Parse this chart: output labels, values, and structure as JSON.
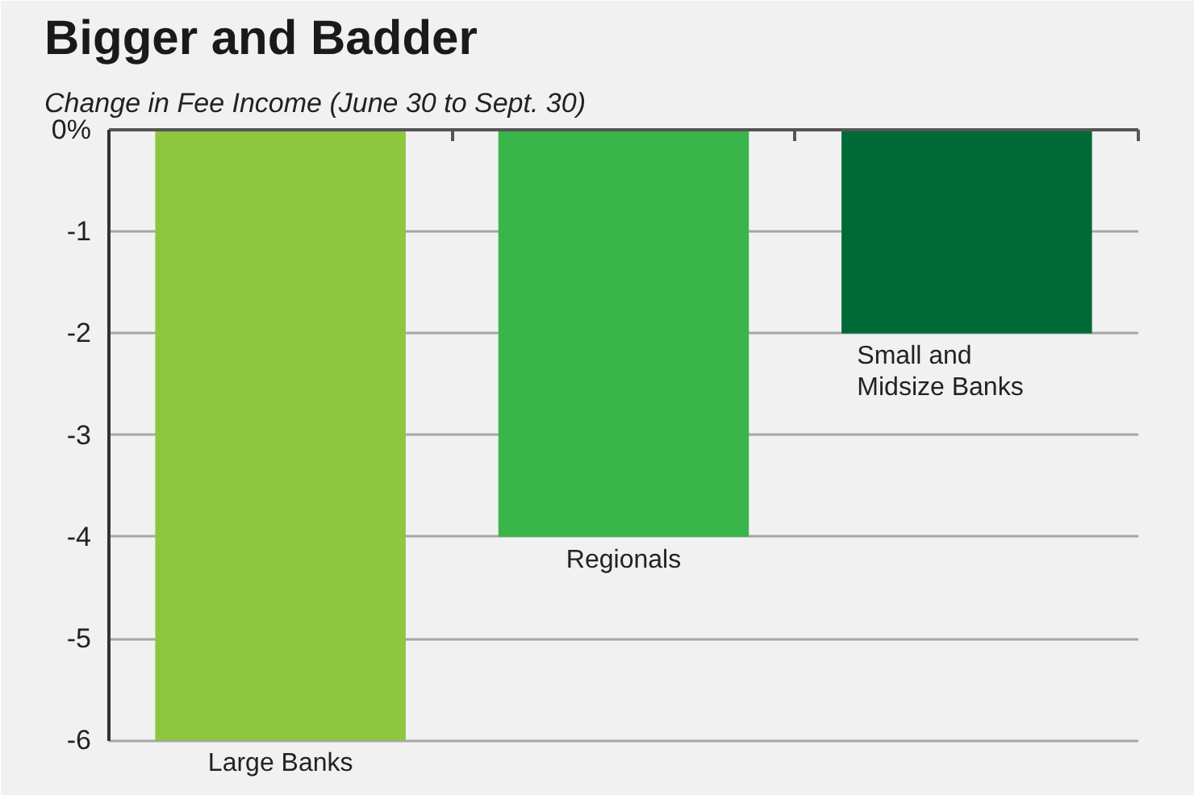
{
  "chart_data": {
    "type": "bar",
    "title": "Bigger and Badder",
    "subtitle": "Change in Fee Income (June 30 to Sept. 30)",
    "categories": [
      "Large Banks",
      "Regionals",
      "Small and Midsize Banks"
    ],
    "values": [
      -6,
      -4,
      -2
    ],
    "colors": [
      "#8dc63f",
      "#39b54a",
      "#006a36"
    ],
    "ylim": [
      -6,
      0
    ],
    "yticks": [
      {
        "value": 0,
        "label": "0%"
      },
      -1,
      -2,
      -3,
      -4,
      -5,
      -6
    ],
    "grid": "y"
  }
}
